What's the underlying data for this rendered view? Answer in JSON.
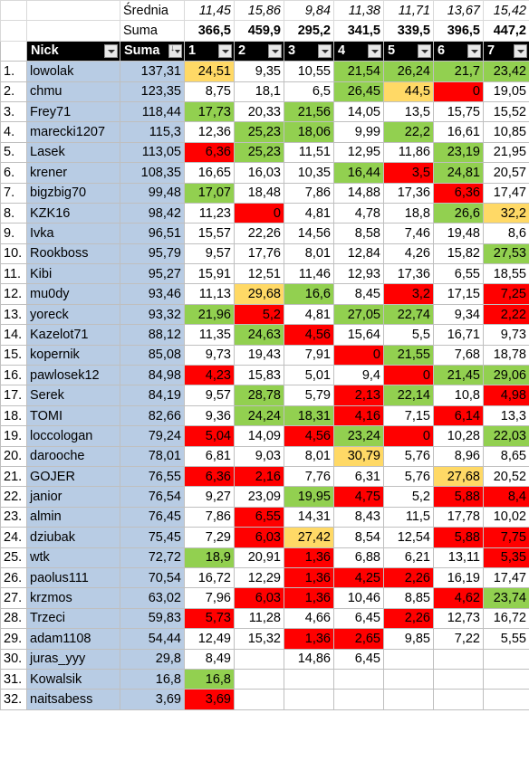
{
  "summary": {
    "avg_label": "Średnia",
    "sum_label": "Suma",
    "averages": [
      "11,45",
      "15,86",
      "9,84",
      "11,38",
      "11,71",
      "13,67",
      "15,42"
    ],
    "sums": [
      "366,5",
      "459,9",
      "295,2",
      "341,5",
      "339,5",
      "396,5",
      "447,2"
    ]
  },
  "headers": [
    "Nick",
    "Suma",
    "1",
    "2",
    "3",
    "4",
    "5",
    "6",
    "7"
  ],
  "colors": {
    "green": "#92d050",
    "red": "#ff0000",
    "yellow": "#ffd966",
    "blue": "#b8cce4",
    "header": "#000000"
  },
  "rows": [
    {
      "rank": "1.",
      "nick": "lowolak",
      "suma": "137,31",
      "v": [
        "24,51",
        "9,35",
        "10,55",
        "21,54",
        "26,24",
        "21,7",
        "23,42"
      ],
      "c": [
        "y",
        "",
        "",
        "g",
        "g",
        "g",
        "g"
      ]
    },
    {
      "rank": "2.",
      "nick": "chmu",
      "suma": "123,35",
      "v": [
        "8,75",
        "18,1",
        "6,5",
        "26,45",
        "44,5",
        "0",
        "19,05"
      ],
      "c": [
        "",
        "",
        "",
        "g",
        "y",
        "r",
        ""
      ]
    },
    {
      "rank": "3.",
      "nick": "Frey71",
      "suma": "118,44",
      "v": [
        "17,73",
        "20,33",
        "21,56",
        "14,05",
        "13,5",
        "15,75",
        "15,52"
      ],
      "c": [
        "g",
        "",
        "g",
        "",
        "",
        "",
        ""
      ]
    },
    {
      "rank": "4.",
      "nick": "marecki1207",
      "suma": "115,3",
      "v": [
        "12,36",
        "25,23",
        "18,06",
        "9,99",
        "22,2",
        "16,61",
        "10,85"
      ],
      "c": [
        "",
        "g",
        "g",
        "",
        "g",
        "",
        ""
      ]
    },
    {
      "rank": "5.",
      "nick": "Lasek",
      "suma": "113,05",
      "v": [
        "6,36",
        "25,23",
        "11,51",
        "12,95",
        "11,86",
        "23,19",
        "21,95"
      ],
      "c": [
        "r",
        "g",
        "",
        "",
        "",
        "g",
        ""
      ]
    },
    {
      "rank": "6.",
      "nick": "krener",
      "suma": "108,35",
      "v": [
        "16,65",
        "16,03",
        "10,35",
        "16,44",
        "3,5",
        "24,81",
        "20,57"
      ],
      "c": [
        "",
        "",
        "",
        "g",
        "r",
        "g",
        ""
      ]
    },
    {
      "rank": "7.",
      "nick": "bigzbig70",
      "suma": "99,48",
      "v": [
        "17,07",
        "18,48",
        "7,86",
        "14,88",
        "17,36",
        "6,36",
        "17,47"
      ],
      "c": [
        "g",
        "",
        "",
        "",
        "",
        "r",
        ""
      ]
    },
    {
      "rank": "8.",
      "nick": "KZK16",
      "suma": "98,42",
      "v": [
        "11,23",
        "0",
        "4,81",
        "4,78",
        "18,8",
        "26,6",
        "32,2"
      ],
      "c": [
        "",
        "r",
        "",
        "",
        "",
        "g",
        "y"
      ]
    },
    {
      "rank": "9.",
      "nick": "Ivka",
      "suma": "96,51",
      "v": [
        "15,57",
        "22,26",
        "14,56",
        "8,58",
        "7,46",
        "19,48",
        "8,6"
      ],
      "c": [
        "",
        "",
        "",
        "",
        "",
        "",
        ""
      ]
    },
    {
      "rank": "10.",
      "nick": "Rookboss",
      "suma": "95,79",
      "v": [
        "9,57",
        "17,76",
        "8,01",
        "12,84",
        "4,26",
        "15,82",
        "27,53"
      ],
      "c": [
        "",
        "",
        "",
        "",
        "",
        "",
        "g"
      ]
    },
    {
      "rank": "11.",
      "nick": "Kibi",
      "suma": "95,27",
      "v": [
        "15,91",
        "12,51",
        "11,46",
        "12,93",
        "17,36",
        "6,55",
        "18,55"
      ],
      "c": [
        "",
        "",
        "",
        "",
        "",
        "",
        ""
      ]
    },
    {
      "rank": "12.",
      "nick": "mu0dy",
      "suma": "93,46",
      "v": [
        "11,13",
        "29,68",
        "16,6",
        "8,45",
        "3,2",
        "17,15",
        "7,25"
      ],
      "c": [
        "",
        "y",
        "g",
        "",
        "r",
        "",
        "r"
      ]
    },
    {
      "rank": "13.",
      "nick": "yoreck",
      "suma": "93,32",
      "v": [
        "21,96",
        "5,2",
        "4,81",
        "27,05",
        "22,74",
        "9,34",
        "2,22"
      ],
      "c": [
        "g",
        "r",
        "",
        "g",
        "g",
        "",
        "r"
      ]
    },
    {
      "rank": "14.",
      "nick": "Kazelot71",
      "suma": "88,12",
      "v": [
        "11,35",
        "24,63",
        "4,56",
        "15,64",
        "5,5",
        "16,71",
        "9,73"
      ],
      "c": [
        "",
        "g",
        "r",
        "",
        "",
        "",
        ""
      ]
    },
    {
      "rank": "15.",
      "nick": "kopernik",
      "suma": "85,08",
      "v": [
        "9,73",
        "19,43",
        "7,91",
        "0",
        "21,55",
        "7,68",
        "18,78"
      ],
      "c": [
        "",
        "",
        "",
        "r",
        "g",
        "",
        ""
      ]
    },
    {
      "rank": "16.",
      "nick": "pawlosek12",
      "suma": "84,98",
      "v": [
        "4,23",
        "15,83",
        "5,01",
        "9,4",
        "0",
        "21,45",
        "29,06"
      ],
      "c": [
        "r",
        "",
        "",
        "",
        "r",
        "g",
        "g"
      ]
    },
    {
      "rank": "17.",
      "nick": "Serek",
      "suma": "84,19",
      "v": [
        "9,57",
        "28,78",
        "5,79",
        "2,13",
        "22,14",
        "10,8",
        "4,98"
      ],
      "c": [
        "",
        "g",
        "",
        "r",
        "g",
        "",
        "r"
      ]
    },
    {
      "rank": "18.",
      "nick": "TOMI",
      "suma": "82,66",
      "v": [
        "9,36",
        "24,24",
        "18,31",
        "4,16",
        "7,15",
        "6,14",
        "13,3"
      ],
      "c": [
        "",
        "g",
        "g",
        "r",
        "",
        "r",
        ""
      ]
    },
    {
      "rank": "19.",
      "nick": "loccologan",
      "suma": "79,24",
      "v": [
        "5,04",
        "14,09",
        "4,56",
        "23,24",
        "0",
        "10,28",
        "22,03"
      ],
      "c": [
        "r",
        "",
        "r",
        "g",
        "r",
        "",
        "g"
      ]
    },
    {
      "rank": "20.",
      "nick": "darooche",
      "suma": "78,01",
      "v": [
        "6,81",
        "9,03",
        "8,01",
        "30,79",
        "5,76",
        "8,96",
        "8,65"
      ],
      "c": [
        "",
        "",
        "",
        "y",
        "",
        "",
        ""
      ]
    },
    {
      "rank": "21.",
      "nick": "GOJER",
      "suma": "76,55",
      "v": [
        "6,36",
        "2,16",
        "7,76",
        "6,31",
        "5,76",
        "27,68",
        "20,52"
      ],
      "c": [
        "r",
        "r",
        "",
        "",
        "",
        "y",
        ""
      ]
    },
    {
      "rank": "22.",
      "nick": "janior",
      "suma": "76,54",
      "v": [
        "9,27",
        "23,09",
        "19,95",
        "4,75",
        "5,2",
        "5,88",
        "8,4"
      ],
      "c": [
        "",
        "",
        "g",
        "r",
        "",
        "r",
        "r"
      ]
    },
    {
      "rank": "23.",
      "nick": "almin",
      "suma": "76,45",
      "v": [
        "7,86",
        "6,55",
        "14,31",
        "8,43",
        "11,5",
        "17,78",
        "10,02"
      ],
      "c": [
        "",
        "r",
        "",
        "",
        "",
        "",
        ""
      ]
    },
    {
      "rank": "24.",
      "nick": "dziubak",
      "suma": "75,45",
      "v": [
        "7,29",
        "6,03",
        "27,42",
        "8,54",
        "12,54",
        "5,88",
        "7,75"
      ],
      "c": [
        "",
        "r",
        "y",
        "",
        "",
        "r",
        "r"
      ]
    },
    {
      "rank": "25.",
      "nick": "wtk",
      "suma": "72,72",
      "v": [
        "18,9",
        "20,91",
        "1,36",
        "6,88",
        "6,21",
        "13,11",
        "5,35"
      ],
      "c": [
        "g",
        "",
        "r",
        "",
        "",
        "",
        "r"
      ]
    },
    {
      "rank": "26.",
      "nick": "paolus111",
      "suma": "70,54",
      "v": [
        "16,72",
        "12,29",
        "1,36",
        "4,25",
        "2,26",
        "16,19",
        "17,47"
      ],
      "c": [
        "",
        "",
        "r",
        "r",
        "r",
        "",
        ""
      ]
    },
    {
      "rank": "27.",
      "nick": "krzmos",
      "suma": "63,02",
      "v": [
        "7,96",
        "6,03",
        "1,36",
        "10,46",
        "8,85",
        "4,62",
        "23,74"
      ],
      "c": [
        "",
        "r",
        "r",
        "",
        "",
        "r",
        "g"
      ]
    },
    {
      "rank": "28.",
      "nick": "Trzeci",
      "suma": "59,83",
      "v": [
        "5,73",
        "11,28",
        "4,66",
        "6,45",
        "2,26",
        "12,73",
        "16,72"
      ],
      "c": [
        "r",
        "",
        "",
        "",
        "r",
        "",
        ""
      ]
    },
    {
      "rank": "29.",
      "nick": "adam1108",
      "suma": "54,44",
      "v": [
        "12,49",
        "15,32",
        "1,36",
        "2,65",
        "9,85",
        "7,22",
        "5,55"
      ],
      "c": [
        "",
        "",
        "r",
        "r",
        "",
        "",
        ""
      ]
    },
    {
      "rank": "30.",
      "nick": "juras_yyy",
      "suma": "29,8",
      "v": [
        "8,49",
        "",
        "14,86",
        "6,45",
        "",
        "",
        ""
      ],
      "c": [
        "",
        "",
        "",
        "",
        "",
        "",
        ""
      ]
    },
    {
      "rank": "31.",
      "nick": "Kowalsik",
      "suma": "16,8",
      "v": [
        "16,8",
        "",
        "",
        "",
        "",
        "",
        ""
      ],
      "c": [
        "g",
        "",
        "",
        "",
        "",
        "",
        ""
      ]
    },
    {
      "rank": "32.",
      "nick": "naitsabess",
      "suma": "3,69",
      "v": [
        "3,69",
        "",
        "",
        "",
        "",
        "",
        ""
      ],
      "c": [
        "r",
        "",
        "",
        "",
        "",
        "",
        ""
      ]
    }
  ]
}
